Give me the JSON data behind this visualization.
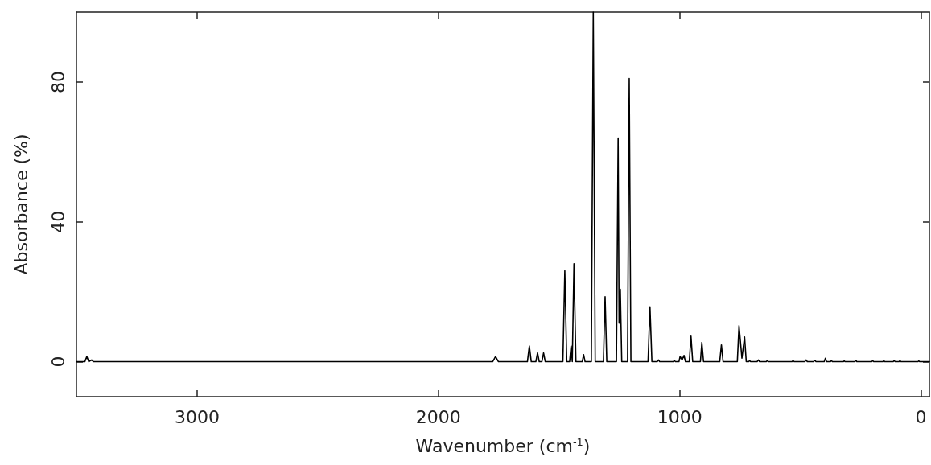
{
  "chart_data": {
    "type": "line",
    "xlabel": "Wavenumber (cm$^{-1}$)",
    "ylabel": "Absorbance (%)",
    "xlim": [
      3500,
      -35
    ],
    "ylim": [
      -10,
      100
    ],
    "xticks": [
      3000,
      2000,
      1000,
      0
    ],
    "yticks": [
      0,
      40,
      80
    ],
    "grid": false,
    "series": [
      {
        "color": "#000000",
        "x": [
          3500,
          3465,
          3457,
          3449,
          3437,
          3429,
          1775,
          1763,
          1751,
          1631,
          1623,
          1615,
          1596,
          1589,
          1582,
          1571,
          1564,
          1557,
          1484,
          1476,
          1468,
          1456,
          1450,
          1445,
          1438,
          1430,
          1404,
          1398,
          1392,
          1366,
          1358,
          1350,
          1316,
          1309,
          1302,
          1262,
          1255,
          1251,
          1246,
          1240,
          1216,
          1209,
          1202,
          1131,
          1123,
          1115,
          1093,
          1088,
          1083,
          1027,
          1022,
          1017,
          1003,
          998,
          990,
          982,
          976,
          960,
          953,
          946,
          914,
          908,
          901,
          834,
          827,
          820,
          761,
          754,
          742,
          731,
          724,
          714,
          710,
          706,
          679,
          674,
          669,
          641,
          637,
          633,
          535,
          530,
          525,
          481,
          476,
          471,
          445,
          440,
          435,
          401,
          396,
          391,
          375,
          371,
          367,
          322,
          318,
          314,
          274,
          270,
          266,
          204,
          200,
          196,
          158,
          154,
          150,
          115,
          111,
          107,
          91,
          87,
          83,
          13,
          9,
          5,
          -35
        ],
        "values": [
          0,
          0,
          1.5,
          0,
          0.5,
          0,
          0,
          1.5,
          0,
          0,
          4.5,
          0,
          0,
          2.5,
          0,
          0,
          2.5,
          0,
          0,
          26,
          0,
          0,
          4.5,
          0,
          28,
          0,
          0,
          2,
          0,
          0,
          100,
          0,
          0,
          18.6,
          0,
          0,
          64,
          11,
          20.7,
          0,
          0,
          81,
          0,
          0,
          15.7,
          0,
          0,
          0.5,
          0,
          0,
          0.3,
          0,
          0,
          1.5,
          0.5,
          1.8,
          0,
          0,
          7.3,
          0,
          0,
          5.5,
          0,
          0,
          4.8,
          0,
          0,
          10.3,
          1,
          7.1,
          0,
          0,
          0.3,
          0,
          0,
          0.5,
          0,
          0,
          0.3,
          0,
          0,
          0.3,
          0,
          0,
          0.5,
          0,
          0,
          0.4,
          0,
          0,
          1,
          0,
          0,
          0.3,
          0,
          0,
          0.2,
          0,
          0,
          0.4,
          0,
          0,
          0.3,
          0,
          0,
          0.3,
          0,
          0,
          0.3,
          0,
          0,
          0.3,
          0,
          0,
          0.2,
          0,
          0
        ]
      }
    ]
  }
}
